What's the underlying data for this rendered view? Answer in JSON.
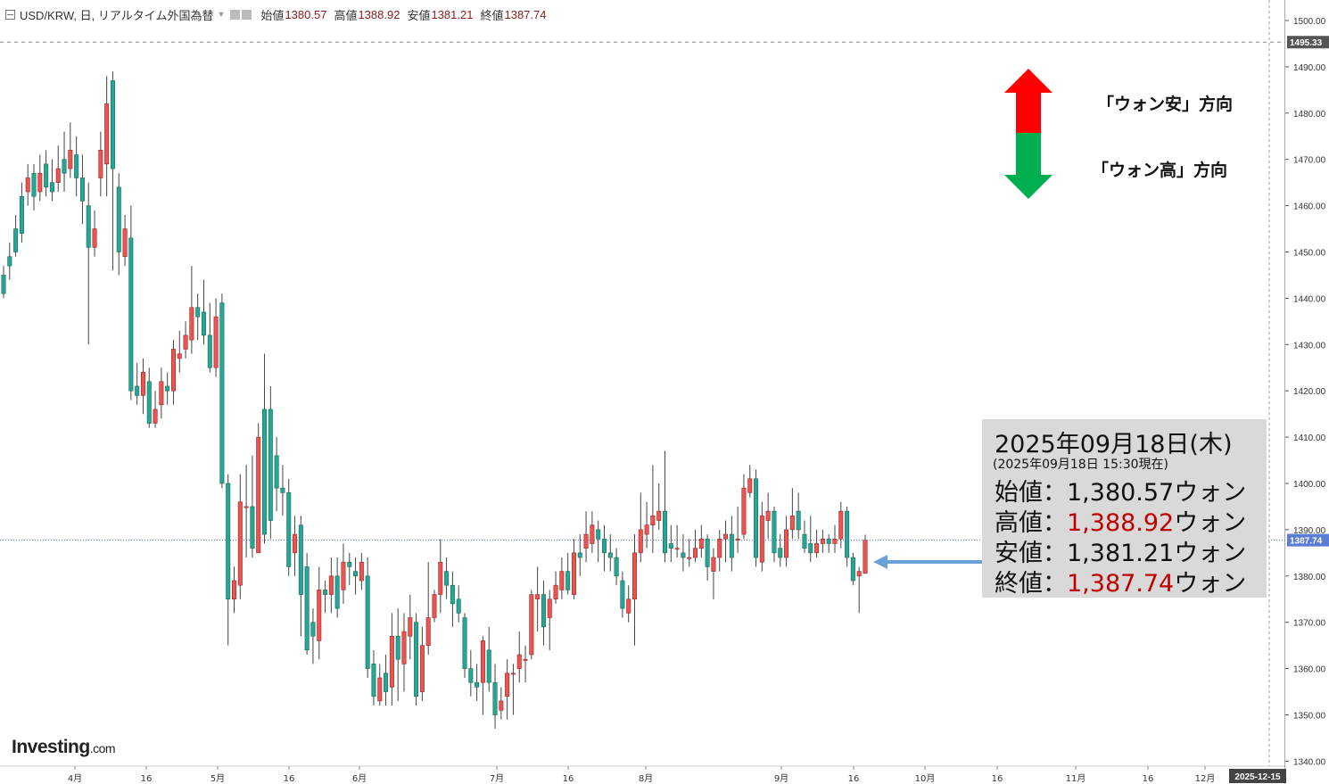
{
  "header": {
    "symbol": "USD/KRW, 日, リアルタイム外国為替",
    "labels": {
      "open": "始値",
      "high": "高値",
      "low": "安値",
      "close": "終値"
    },
    "values": {
      "open": "1380.57",
      "high": "1388.92",
      "low": "1381.21",
      "close": "1387.74"
    }
  },
  "legend": {
    "up": "「ウォン安」方向",
    "down": "「ウォン高」方向",
    "up_color": "#ff0000",
    "down_color": "#00b050"
  },
  "infobox": {
    "date": "2025年09月18日(木)",
    "time": "(2025年09月18日 15:30現在)",
    "rows": [
      {
        "label": "始値：",
        "value": "1,380.57",
        "unit": "ウォン",
        "red": false
      },
      {
        "label": "高値：",
        "value": "1,388.92",
        "unit": "ウォン",
        "red": true
      },
      {
        "label": "安値：",
        "value": "1,381.21",
        "unit": "ウォン",
        "red": false
      },
      {
        "label": "終値：",
        "value": "1,387.74",
        "unit": "ウォン",
        "red": true
      }
    ]
  },
  "logo": {
    "main": "Investing",
    "suffix": ".com"
  },
  "colors": {
    "up": "#ef5350",
    "down": "#26a69a",
    "up_edge": "#8e2b2b",
    "down_edge": "#1b6b4a",
    "axis_badge": "#5b7dd8",
    "arrow": "#6aa0d8",
    "info_red": "#c00000"
  },
  "chart_data": {
    "type": "candlestick",
    "y_ticks": [
      1340,
      1350,
      1360,
      1370,
      1380,
      1390,
      1400,
      1410,
      1420,
      1430,
      1440,
      1450,
      1460,
      1470,
      1480,
      1490,
      1500
    ],
    "ylim": [
      1337,
      1504
    ],
    "last_price_label": "1387.74",
    "dashed_level_label": "1495.33",
    "x_tick_labels": [
      {
        "label": "4月"
      },
      {
        "label": "16"
      },
      {
        "label": "5月"
      },
      {
        "label": "16"
      },
      {
        "label": "6月"
      },
      {
        "label": "7月"
      },
      {
        "label": "16"
      },
      {
        "label": "8月"
      },
      {
        "label": "9月"
      },
      {
        "label": "16"
      },
      {
        "label": "10月"
      },
      {
        "label": "16"
      },
      {
        "label": "11月"
      },
      {
        "label": "16"
      },
      {
        "label": "12月"
      },
      {
        "label": "2025-12-15"
      }
    ],
    "candles": [
      [
        1445,
        1441,
        1447,
        1440
      ],
      [
        1449,
        1447,
        1452,
        1444
      ],
      [
        1455,
        1450,
        1458,
        1449
      ],
      [
        1462,
        1454,
        1465,
        1452
      ],
      [
        1463,
        1466,
        1469,
        1460
      ],
      [
        1467,
        1462,
        1469,
        1459
      ],
      [
        1463,
        1467,
        1471,
        1461
      ],
      [
        1469,
        1464,
        1472,
        1462
      ],
      [
        1465,
        1463,
        1470,
        1461
      ],
      [
        1465,
        1468,
        1473,
        1463
      ],
      [
        1470,
        1467,
        1476,
        1463
      ],
      [
        1468,
        1472,
        1478,
        1466
      ],
      [
        1471,
        1466,
        1475,
        1462
      ],
      [
        1466,
        1461,
        1471,
        1456
      ],
      [
        1460,
        1451,
        1465,
        1430
      ],
      [
        1451,
        1455,
        1459,
        1449
      ],
      [
        1466,
        1472,
        1476,
        1462
      ],
      [
        1469,
        1482,
        1488,
        1462
      ],
      [
        1487,
        1468,
        1489,
        1446
      ],
      [
        1464,
        1450,
        1467,
        1445
      ],
      [
        1449,
        1455,
        1458,
        1447
      ],
      [
        1453,
        1420,
        1460,
        1418
      ],
      [
        1421,
        1419,
        1426,
        1417
      ],
      [
        1419,
        1424,
        1427,
        1415
      ],
      [
        1422,
        1413,
        1425,
        1412
      ],
      [
        1413,
        1416,
        1420,
        1412
      ],
      [
        1417,
        1422,
        1425,
        1414
      ],
      [
        1421,
        1420,
        1424,
        1417
      ],
      [
        1420,
        1429,
        1431,
        1417
      ],
      [
        1427,
        1428,
        1433,
        1424
      ],
      [
        1429,
        1432,
        1435,
        1427
      ],
      [
        1431,
        1438,
        1447,
        1428
      ],
      [
        1438,
        1436,
        1441,
        1431
      ],
      [
        1437,
        1432,
        1444,
        1430
      ],
      [
        1432,
        1425,
        1439,
        1424
      ],
      [
        1425,
        1436,
        1440,
        1423
      ],
      [
        1439,
        1400,
        1441,
        1399
      ],
      [
        1400,
        1375,
        1402,
        1365
      ],
      [
        1375,
        1379,
        1382,
        1372
      ],
      [
        1378,
        1396,
        1402,
        1375
      ],
      [
        1395,
        1395,
        1404,
        1384
      ],
      [
        1395,
        1386,
        1406,
        1384
      ],
      [
        1385,
        1410,
        1413,
        1386
      ],
      [
        1416,
        1389,
        1428,
        1387
      ],
      [
        1416,
        1392,
        1421,
        1388
      ],
      [
        1406,
        1399,
        1410,
        1394
      ],
      [
        1399,
        1398,
        1404,
        1393
      ],
      [
        1398,
        1382,
        1401,
        1380
      ],
      [
        1385,
        1389,
        1393,
        1380
      ],
      [
        1391,
        1376,
        1393,
        1367
      ],
      [
        1382,
        1364,
        1385,
        1363
      ],
      [
        1370,
        1367,
        1373,
        1361
      ],
      [
        1366,
        1377,
        1382,
        1362
      ],
      [
        1377,
        1376,
        1379,
        1372
      ],
      [
        1376,
        1380,
        1384,
        1372
      ],
      [
        1380,
        1373,
        1384,
        1371
      ],
      [
        1377,
        1383,
        1387,
        1374
      ],
      [
        1383,
        1382,
        1385,
        1378
      ],
      [
        1381,
        1380,
        1384,
        1376
      ],
      [
        1379,
        1383,
        1385,
        1377
      ],
      [
        1380,
        1360,
        1384,
        1358
      ],
      [
        1361,
        1354,
        1364,
        1352
      ],
      [
        1353,
        1358,
        1361,
        1352
      ],
      [
        1359,
        1355,
        1363,
        1352
      ],
      [
        1356,
        1367,
        1372,
        1352
      ],
      [
        1367,
        1362,
        1373,
        1353
      ],
      [
        1361,
        1368,
        1372,
        1355
      ],
      [
        1367,
        1371,
        1376,
        1362
      ],
      [
        1370,
        1354,
        1372,
        1352
      ],
      [
        1355,
        1365,
        1369,
        1353
      ],
      [
        1365,
        1371,
        1383,
        1363
      ],
      [
        1371,
        1376,
        1377,
        1370
      ],
      [
        1376,
        1383,
        1388,
        1372
      ],
      [
        1381,
        1378,
        1384,
        1375
      ],
      [
        1378,
        1374,
        1381,
        1369
      ],
      [
        1375,
        1372,
        1378,
        1370
      ],
      [
        1371,
        1360,
        1372,
        1358
      ],
      [
        1360,
        1357,
        1364,
        1354
      ],
      [
        1357,
        1356,
        1361,
        1353
      ],
      [
        1357,
        1366,
        1367,
        1350
      ],
      [
        1364,
        1357,
        1369,
        1355
      ],
      [
        1357,
        1350,
        1361,
        1347
      ],
      [
        1351,
        1353,
        1356,
        1349
      ],
      [
        1354,
        1359,
        1362,
        1349
      ],
      [
        1359,
        1359,
        1361,
        1350
      ],
      [
        1360,
        1363,
        1368,
        1357
      ],
      [
        1362,
        1362,
        1365,
        1357
      ],
      [
        1363,
        1376,
        1377,
        1362
      ],
      [
        1375,
        1376,
        1382,
        1368
      ],
      [
        1376,
        1369,
        1379,
        1365
      ],
      [
        1371,
        1375,
        1377,
        1364
      ],
      [
        1375,
        1378,
        1381,
        1374
      ],
      [
        1377,
        1381,
        1384,
        1375
      ],
      [
        1381,
        1377,
        1385,
        1376
      ],
      [
        1376,
        1385,
        1388,
        1375
      ],
      [
        1385,
        1384,
        1389,
        1380
      ],
      [
        1386,
        1389,
        1394,
        1383
      ],
      [
        1387,
        1391,
        1394,
        1385
      ],
      [
        1390,
        1388,
        1392,
        1383
      ],
      [
        1388,
        1385,
        1391,
        1381
      ],
      [
        1385,
        1384,
        1389,
        1381
      ],
      [
        1384,
        1380,
        1386,
        1378
      ],
      [
        1379,
        1373,
        1381,
        1371
      ],
      [
        1372,
        1375,
        1378,
        1370
      ],
      [
        1375,
        1385,
        1389,
        1365
      ],
      [
        1385,
        1390,
        1398,
        1383
      ],
      [
        1389,
        1391,
        1396,
        1386
      ],
      [
        1391,
        1393,
        1404,
        1385
      ],
      [
        1392,
        1394,
        1400,
        1390
      ],
      [
        1394,
        1385,
        1407,
        1383
      ],
      [
        1387,
        1386,
        1391,
        1383
      ],
      [
        1386,
        1386,
        1391,
        1384
      ],
      [
        1385,
        1384,
        1389,
        1381
      ],
      [
        1384,
        1384,
        1388,
        1382
      ],
      [
        1384,
        1386,
        1390,
        1383
      ],
      [
        1386,
        1388,
        1391,
        1384
      ],
      [
        1388,
        1382,
        1389,
        1379
      ],
      [
        1381,
        1384,
        1386,
        1375
      ],
      [
        1384,
        1388,
        1390,
        1381
      ],
      [
        1388,
        1389,
        1392,
        1383
      ],
      [
        1389,
        1384,
        1393,
        1381
      ],
      [
        1388,
        1388,
        1395,
        1385
      ],
      [
        1389,
        1399,
        1402,
        1388
      ],
      [
        1398,
        1401,
        1404,
        1397
      ],
      [
        1401,
        1384,
        1403,
        1382
      ],
      [
        1383,
        1393,
        1396,
        1381
      ],
      [
        1392,
        1394,
        1398,
        1388
      ],
      [
        1394,
        1385,
        1395,
        1383
      ],
      [
        1386,
        1384,
        1389,
        1382
      ],
      [
        1384,
        1390,
        1393,
        1382
      ],
      [
        1390,
        1393,
        1399,
        1388
      ],
      [
        1394,
        1390,
        1398,
        1388
      ],
      [
        1389,
        1386,
        1392,
        1385
      ],
      [
        1387,
        1385,
        1393,
        1383
      ],
      [
        1385,
        1387,
        1390,
        1384
      ],
      [
        1387,
        1388,
        1390,
        1385
      ],
      [
        1388,
        1387,
        1389,
        1385
      ],
      [
        1387,
        1388,
        1391,
        1385
      ],
      [
        1388,
        1394,
        1396,
        1386
      ],
      [
        1394,
        1384,
        1395,
        1382
      ],
      [
        1384,
        1379,
        1385,
        1378
      ],
      [
        1380,
        1381,
        1382,
        1372
      ],
      [
        1380.57,
        1387.74,
        1388.92,
        1381.21
      ]
    ]
  }
}
